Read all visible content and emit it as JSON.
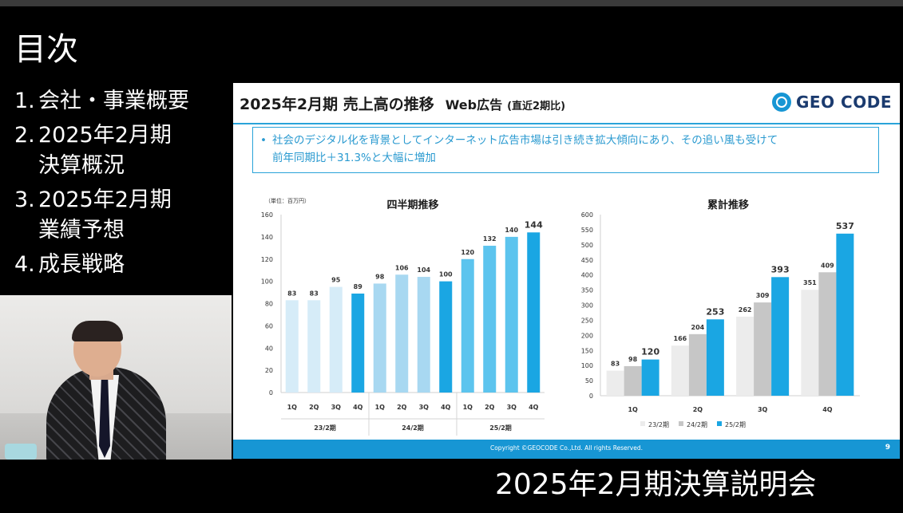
{
  "toc": {
    "title": "目次",
    "items": [
      {
        "num": "1.",
        "text": "会社・事業概要"
      },
      {
        "num": "2.",
        "text": "2025年2月期\n決算概況"
      },
      {
        "num": "3.",
        "text": "2025年2月期\n業績予想"
      },
      {
        "num": "4.",
        "text": "成長戦略"
      }
    ]
  },
  "slide": {
    "title": "2025年2月期 売上高の推移",
    "subtitle": "Web広告",
    "subtitle_note": "(直近2期比)",
    "logo_text": "GEO CODE",
    "callout_line1": "社会のデジタル化を背景としてインターネット広告市場は引き続き拡大傾向にあり、その追い風も受けて",
    "callout_line2": "前年同期比＋31.3%と大幅に増加",
    "copyright": "Copyright ©GEOCODE Co.,Ltd. All rights Reserved.",
    "page": "9"
  },
  "caption": "2025年2月期決算説明会",
  "colors": {
    "fy23": "#d6ecf8",
    "fy24": "#a8d8f1",
    "fy25_light": "#5cc4ee",
    "highlight": "#1aa6e3",
    "cum23": "#ececec",
    "cum24": "#c6c6c6",
    "cum25": "#1aa6e3"
  },
  "chart_data": [
    {
      "type": "bar",
      "title": "四半期推移",
      "unit": "（単位：百万円）",
      "ylim": [
        0,
        160
      ],
      "yticks": [
        0,
        20,
        40,
        60,
        80,
        100,
        120,
        140,
        160
      ],
      "groups": [
        {
          "label": "23/2期",
          "categories": [
            "1Q",
            "2Q",
            "3Q",
            "4Q"
          ],
          "values": [
            83,
            83,
            95,
            89
          ]
        },
        {
          "label": "24/2期",
          "categories": [
            "1Q",
            "2Q",
            "3Q",
            "4Q"
          ],
          "values": [
            98,
            106,
            104,
            100
          ]
        },
        {
          "label": "25/2期",
          "categories": [
            "1Q",
            "2Q",
            "3Q",
            "4Q"
          ],
          "values": [
            120,
            132,
            140,
            144
          ]
        }
      ]
    },
    {
      "type": "bar",
      "title": "累計推移",
      "ylim": [
        0,
        600
      ],
      "yticks": [
        0,
        50,
        100,
        150,
        200,
        250,
        300,
        350,
        400,
        450,
        500,
        550,
        600
      ],
      "categories": [
        "1Q",
        "2Q",
        "3Q",
        "4Q"
      ],
      "series": [
        {
          "name": "23/2期",
          "values": [
            83,
            166,
            262,
            351
          ]
        },
        {
          "name": "24/2期",
          "values": [
            98,
            204,
            309,
            409
          ]
        },
        {
          "name": "25/2期",
          "values": [
            120,
            253,
            393,
            537
          ]
        }
      ]
    }
  ]
}
